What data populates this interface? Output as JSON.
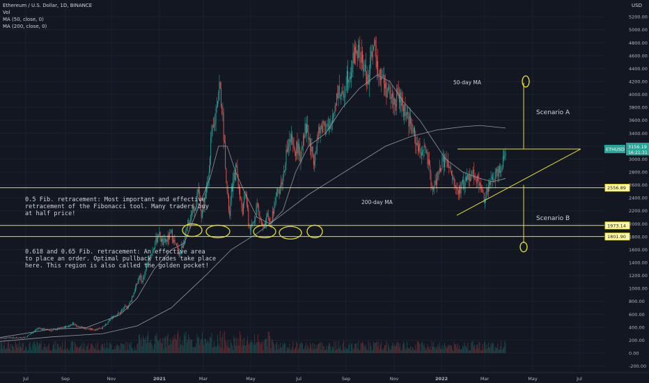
{
  "legend": {
    "title": "Ethereum / U.S. Dollar, 1D, BINANCE",
    "vol": "Vol",
    "ma50": "MA (50, close, 0)",
    "ma200": "MA (200, close, 0)"
  },
  "currency": "USD",
  "notes": {
    "fib05": "0.5 Fib. retracement: Most important and effective\nretracement of the Fibonacci tool. Many traders buy\nat half price!",
    "fib0618": "0.618 and 0.65 Fib. retracement: An effective area\nto place an order. Optimal pullback trades take place\nhere. This region is also called the golden pocket!"
  },
  "annotations": {
    "ma50_label": "50-day MA",
    "ma200_label": "200-day MA",
    "scenario_a": "Scenario A",
    "scenario_b": "Scenario B"
  },
  "colors": {
    "background": "#131722",
    "up": "#26a69a",
    "down": "#ef5350",
    "ma": "#9598a1",
    "annotation": "#e6df32",
    "price_badge": "#26a69a"
  },
  "chart_data": {
    "type": "candlestick",
    "symbol": "ETHUSD",
    "x_ticks": [
      "Jul",
      "Sep",
      "Nov",
      "2021",
      "Mar",
      "May",
      "Jul",
      "Sep",
      "Nov",
      "2022",
      "Mar",
      "May",
      "Jul"
    ],
    "y_ticks": [
      -200,
      0,
      200,
      400,
      600,
      800,
      1000,
      1200,
      1400,
      1600,
      1800,
      2000,
      2200,
      2400,
      2600,
      2800,
      3000,
      3200,
      3400,
      3600,
      3800,
      4000,
      4200,
      4400,
      4600,
      4800,
      5000,
      5200
    ],
    "y_tick_labels": [
      "-200.00",
      "0.00",
      "200.00",
      "400.00",
      "600.00",
      "800.00",
      "1000.00",
      "1200.00",
      "1400.00",
      "1600.00",
      "1800.00",
      "2000.00",
      "2200.00",
      "2400.00",
      "2600.00",
      "2800.00",
      "3000.00",
      "3200.00",
      "3400.00",
      "3600.00",
      "3800.00",
      "4000.00",
      "4200.00",
      "4400.00",
      "4600.00",
      "4800.00",
      "5000.00",
      "5200.00"
    ],
    "ylim": [
      -280,
      5460
    ],
    "price_path": [
      [
        0,
        225
      ],
      [
        10,
        240
      ],
      [
        20,
        235
      ],
      [
        30,
        245
      ],
      [
        40,
        340
      ],
      [
        45,
        390
      ],
      [
        50,
        370
      ],
      [
        60,
        350
      ],
      [
        70,
        380
      ],
      [
        80,
        420
      ],
      [
        85,
        460
      ],
      [
        90,
        420
      ],
      [
        100,
        380
      ],
      [
        110,
        360
      ],
      [
        120,
        400
      ],
      [
        125,
        450
      ],
      [
        128,
        520
      ],
      [
        133,
        580
      ],
      [
        140,
        620
      ],
      [
        145,
        700
      ],
      [
        150,
        730
      ],
      [
        158,
        1000
      ],
      [
        163,
        1200
      ],
      [
        166,
        1100
      ],
      [
        170,
        1300
      ],
      [
        175,
        1500
      ],
      [
        180,
        1650
      ],
      [
        185,
        1850
      ],
      [
        190,
        1700
      ],
      [
        195,
        1750
      ],
      [
        200,
        1850
      ],
      [
        205,
        1650
      ],
      [
        210,
        1550
      ],
      [
        215,
        1750
      ],
      [
        220,
        2000
      ],
      [
        224,
        2200
      ],
      [
        228,
        2300
      ],
      [
        232,
        2500
      ],
      [
        235,
        2150
      ],
      [
        240,
        2450
      ],
      [
        243,
        2700
      ],
      [
        246,
        3300
      ],
      [
        250,
        3500
      ],
      [
        253,
        3900
      ],
      [
        256,
        4150
      ],
      [
        259,
        3800
      ],
      [
        262,
        3200
      ],
      [
        265,
        2500
      ],
      [
        268,
        2100
      ],
      [
        270,
        2500
      ],
      [
        273,
        2700
      ],
      [
        276,
        2900
      ],
      [
        280,
        2400
      ],
      [
        283,
        2200
      ],
      [
        287,
        2500
      ],
      [
        290,
        2000
      ],
      [
        293,
        1900
      ],
      [
        297,
        2100
      ],
      [
        300,
        2300
      ],
      [
        305,
        2000
      ],
      [
        308,
        1900
      ],
      [
        312,
        2100
      ],
      [
        316,
        2000
      ],
      [
        320,
        2300
      ],
      [
        325,
        2500
      ],
      [
        330,
        2700
      ],
      [
        333,
        3000
      ],
      [
        336,
        3200
      ],
      [
        340,
        3300
      ],
      [
        343,
        3100
      ],
      [
        347,
        3200
      ],
      [
        350,
        3000
      ],
      [
        354,
        3400
      ],
      [
        358,
        3500
      ],
      [
        362,
        3200
      ],
      [
        366,
        3000
      ],
      [
        370,
        3300
      ],
      [
        375,
        3500
      ],
      [
        380,
        3600
      ],
      [
        385,
        3400
      ],
      [
        390,
        3800
      ],
      [
        395,
        4100
      ],
      [
        400,
        3900
      ],
      [
        405,
        4300
      ],
      [
        410,
        4400
      ],
      [
        415,
        4700
      ],
      [
        420,
        4600
      ],
      [
        425,
        4400
      ],
      [
        430,
        4200
      ],
      [
        435,
        4800
      ],
      [
        440,
        4500
      ],
      [
        445,
        4300
      ],
      [
        450,
        4100
      ],
      [
        455,
        4000
      ],
      [
        460,
        3900
      ],
      [
        465,
        4000
      ],
      [
        470,
        3800
      ],
      [
        475,
        3700
      ],
      [
        480,
        3500
      ],
      [
        485,
        3300
      ],
      [
        490,
        3100
      ],
      [
        495,
        3200
      ],
      [
        500,
        2900
      ],
      [
        505,
        2500
      ],
      [
        510,
        2700
      ],
      [
        515,
        2900
      ],
      [
        520,
        3000
      ],
      [
        525,
        2800
      ],
      [
        530,
        2600
      ],
      [
        535,
        2500
      ],
      [
        540,
        2600
      ],
      [
        545,
        2700
      ],
      [
        550,
        2800
      ],
      [
        555,
        2750
      ],
      [
        560,
        2600
      ],
      [
        565,
        2400
      ],
      [
        570,
        2550
      ],
      [
        575,
        2700
      ],
      [
        580,
        2800
      ],
      [
        585,
        2900
      ],
      [
        590,
        3156
      ]
    ],
    "ma50_path": [
      [
        0,
        240
      ],
      [
        60,
        370
      ],
      [
        100,
        390
      ],
      [
        140,
        590
      ],
      [
        160,
        850
      ],
      [
        180,
        1300
      ],
      [
        200,
        1600
      ],
      [
        215,
        1700
      ],
      [
        230,
        2200
      ],
      [
        245,
        2700
      ],
      [
        255,
        3200
      ],
      [
        265,
        3200
      ],
      [
        275,
        2800
      ],
      [
        285,
        2500
      ],
      [
        300,
        2100
      ],
      [
        315,
        2000
      ],
      [
        330,
        2200
      ],
      [
        345,
        2800
      ],
      [
        360,
        3200
      ],
      [
        380,
        3400
      ],
      [
        400,
        3800
      ],
      [
        420,
        4100
      ],
      [
        440,
        4300
      ],
      [
        455,
        4200
      ],
      [
        470,
        3900
      ],
      [
        490,
        3600
      ],
      [
        505,
        3300
      ],
      [
        520,
        3000
      ],
      [
        540,
        2800
      ],
      [
        560,
        2700
      ],
      [
        575,
        2650
      ],
      [
        590,
        2700
      ]
    ],
    "ma200_path": [
      [
        0,
        180
      ],
      [
        60,
        250
      ],
      [
        120,
        300
      ],
      [
        160,
        420
      ],
      [
        200,
        700
      ],
      [
        240,
        1200
      ],
      [
        270,
        1600
      ],
      [
        300,
        1850
      ],
      [
        330,
        2150
      ],
      [
        360,
        2450
      ],
      [
        390,
        2700
      ],
      [
        420,
        2950
      ],
      [
        450,
        3200
      ],
      [
        480,
        3350
      ],
      [
        510,
        3450
      ],
      [
        540,
        3500
      ],
      [
        560,
        3520
      ],
      [
        590,
        3480
      ]
    ],
    "levels": [
      {
        "label": "2556.89",
        "value": 2556.89
      },
      {
        "label": "1973.14",
        "value": 1973.14
      },
      {
        "label": "1801.90",
        "value": 1801.9
      }
    ],
    "last_price": {
      "symbol": "ETHUSD",
      "price": "3156.19",
      "countdown": "16:21:31"
    }
  }
}
